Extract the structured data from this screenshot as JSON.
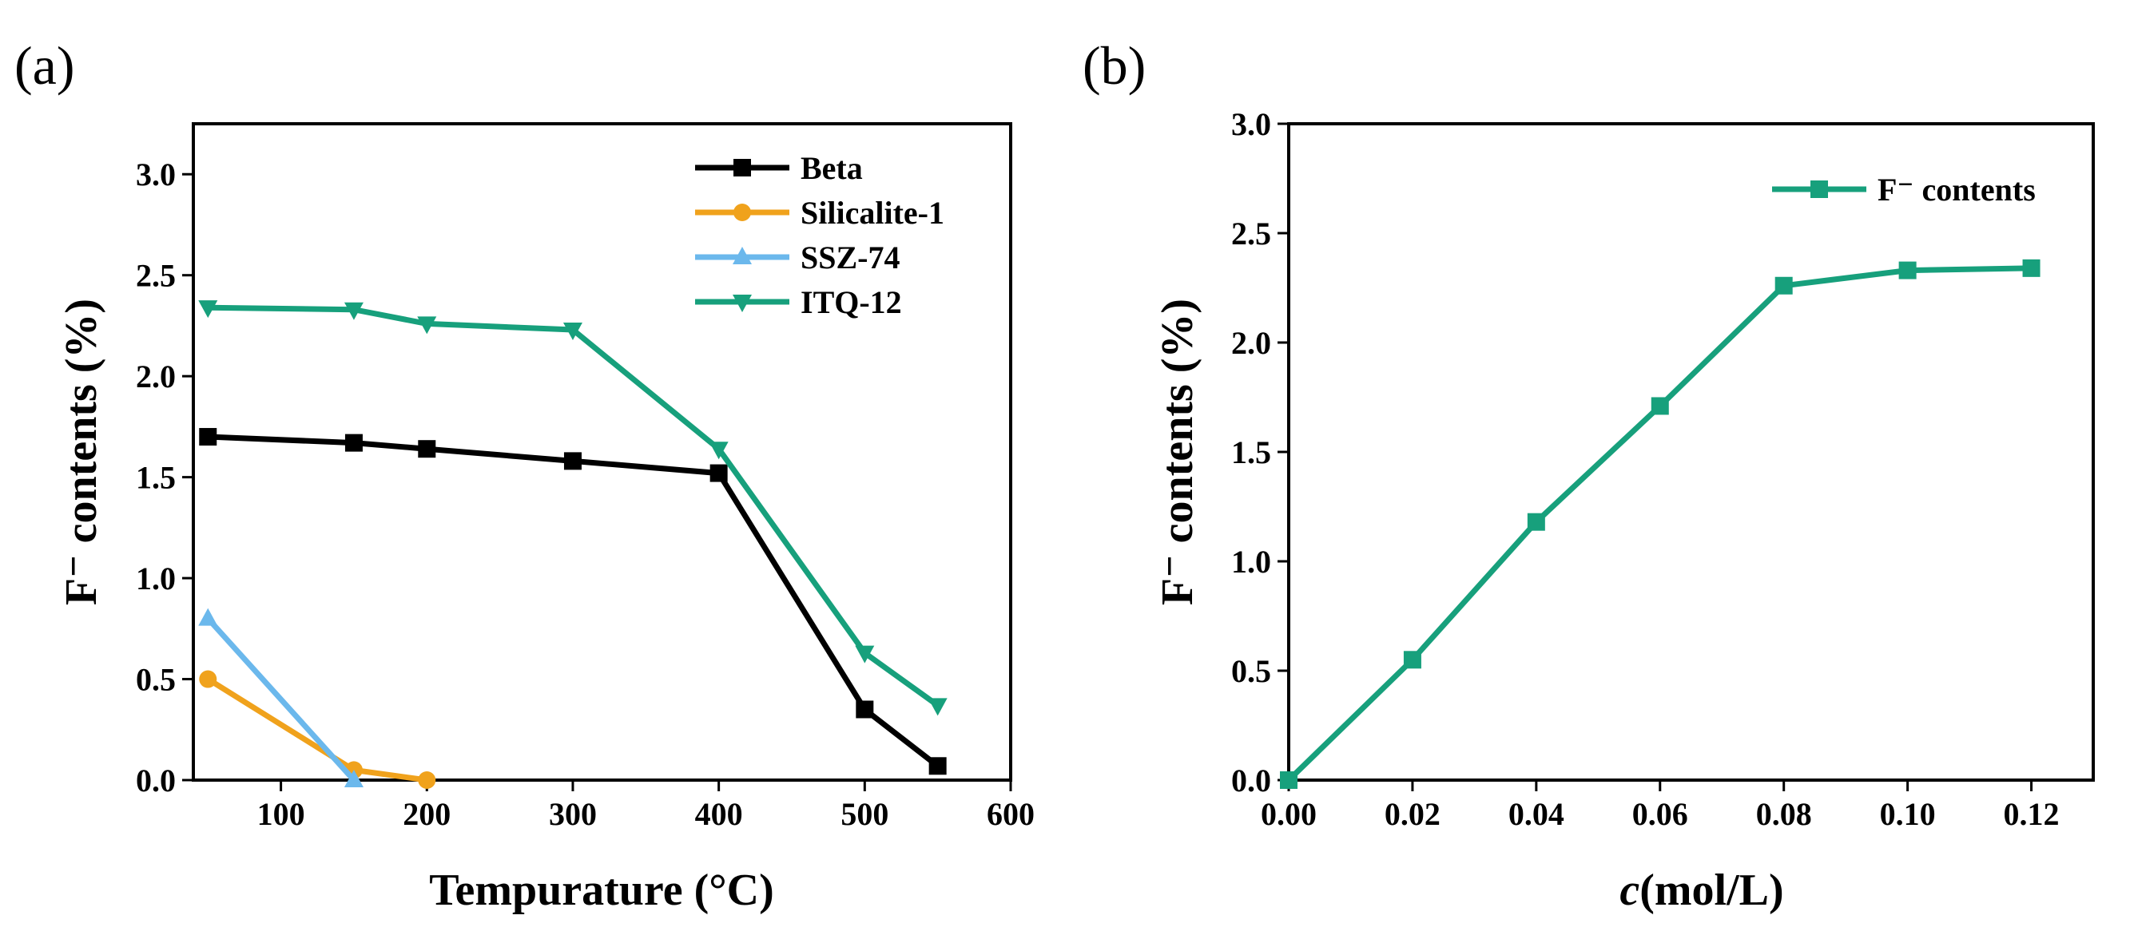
{
  "chart_data": [
    {
      "type": "line",
      "panel_label": "(a)",
      "xlabel": "Tempurature (°C)",
      "ylabel": "F⁻ contents (%)",
      "xlim": [
        40,
        600
      ],
      "ylim": [
        0,
        3.25
      ],
      "xticks": [
        100,
        200,
        300,
        400,
        500,
        600
      ],
      "yticks": [
        0.0,
        0.5,
        1.0,
        1.5,
        2.0,
        2.5,
        3.0
      ],
      "xtick_labels": [
        "100",
        "200",
        "300",
        "400",
        "500",
        "600"
      ],
      "ytick_labels": [
        "0.0",
        "0.5",
        "1.0",
        "1.5",
        "2.0",
        "2.5",
        "3.0"
      ],
      "legend_position": "top-right",
      "series": [
        {
          "name": "Beta",
          "color": "#000000",
          "marker": "square",
          "x": [
            50,
            150,
            200,
            300,
            400,
            500,
            550
          ],
          "y": [
            1.7,
            1.67,
            1.64,
            1.58,
            1.52,
            0.35,
            0.07
          ]
        },
        {
          "name": "Silicalite-1",
          "color": "#f0a21c",
          "marker": "circle",
          "x": [
            50,
            150,
            200
          ],
          "y": [
            0.5,
            0.05,
            0.0
          ]
        },
        {
          "name": "SSZ-74",
          "color": "#6bb8ec",
          "marker": "triangle-up",
          "x": [
            50,
            150
          ],
          "y": [
            0.8,
            0.0
          ]
        },
        {
          "name": "ITQ-12",
          "color": "#17a07c",
          "marker": "triangle-down",
          "x": [
            50,
            150,
            200,
            300,
            400,
            500,
            550
          ],
          "y": [
            2.34,
            2.33,
            2.26,
            2.23,
            1.64,
            0.63,
            0.37
          ]
        }
      ]
    },
    {
      "type": "line",
      "panel_label": "(b)",
      "xlabel_italic": "c",
      "xlabel_rest": "(mol/L)",
      "ylabel": "F⁻ contents (%)",
      "xlim": [
        0,
        0.13
      ],
      "ylim": [
        0,
        3.0
      ],
      "xticks": [
        0.0,
        0.02,
        0.04,
        0.06,
        0.08,
        0.1,
        0.12
      ],
      "yticks": [
        0.0,
        0.5,
        1.0,
        1.5,
        2.0,
        2.5,
        3.0
      ],
      "xtick_labels": [
        "0.00",
        "0.02",
        "0.04",
        "0.06",
        "0.08",
        "0.10",
        "0.12"
      ],
      "ytick_labels": [
        "0.0",
        "0.5",
        "1.0",
        "1.5",
        "2.0",
        "2.5",
        "3.0"
      ],
      "legend_position": "top-right",
      "series": [
        {
          "name": "F⁻ contents",
          "color": "#17a07c",
          "marker": "square",
          "x": [
            0.0,
            0.02,
            0.04,
            0.06,
            0.08,
            0.1,
            0.12
          ],
          "y": [
            0.0,
            0.55,
            1.18,
            1.71,
            2.26,
            2.33,
            2.34
          ]
        }
      ]
    }
  ]
}
